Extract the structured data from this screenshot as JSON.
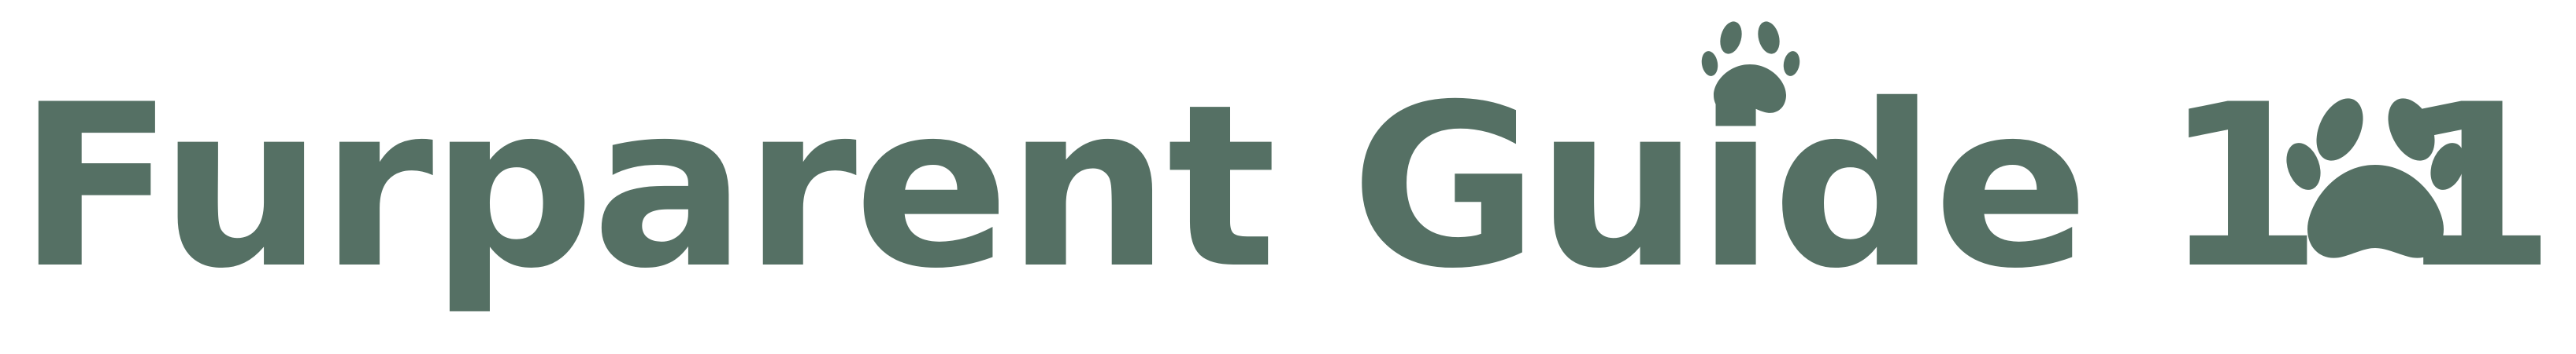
{
  "logo": {
    "text": "Furparent Guide 1 1",
    "accessible_name": "Furparent Guide 101",
    "color": "#557064",
    "icons": [
      "paw-print-icon",
      "paw-print-icon"
    ]
  }
}
